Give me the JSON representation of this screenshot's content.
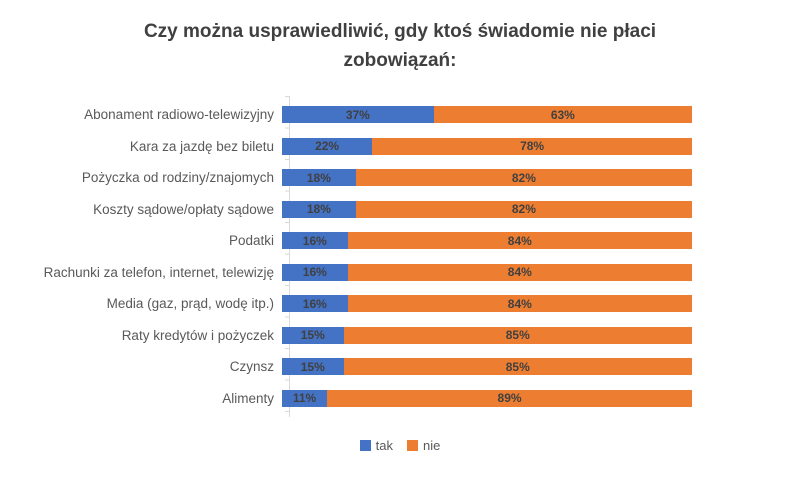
{
  "title": "Czy można usprawiedliwić, gdy ktoś świadomie nie płaci zobowiązań:",
  "chart_data": {
    "type": "bar",
    "orientation": "horizontal",
    "stacked": true,
    "title": "Czy można usprawiedliwić, gdy ktoś świadomie nie płaci zobowiązań:",
    "categories": [
      "Abonament radiowo-telewizyjny",
      "Kara za jazdę bez biletu",
      "Pożyczka od rodziny/znajomych",
      "Koszty sądowe/opłaty sądowe",
      "Podatki",
      "Rachunki za telefon, internet, telewizję",
      "Media (gaz, prąd, wodę itp.)",
      "Raty kredytów i pożyczek",
      "Czynsz",
      "Alimenty"
    ],
    "series": [
      {
        "name": "tak",
        "color": "#4472C4",
        "values": [
          37,
          22,
          18,
          18,
          16,
          16,
          16,
          15,
          15,
          11
        ]
      },
      {
        "name": "nie",
        "color": "#ED7D31",
        "values": [
          63,
          78,
          82,
          82,
          84,
          84,
          84,
          85,
          85,
          89
        ]
      }
    ],
    "value_unit": "%",
    "xlim": [
      0,
      100
    ],
    "xlabel": "",
    "ylabel": "",
    "grid": false,
    "data_labels": true,
    "legend_position": "bottom"
  },
  "colors": {
    "background": "#FFFFFF",
    "title": "#404040",
    "category_label": "#595959",
    "value_label": "#404040",
    "axis_line": "#D9D9D9",
    "tak": "#4472C4",
    "nie": "#ED7D31"
  }
}
